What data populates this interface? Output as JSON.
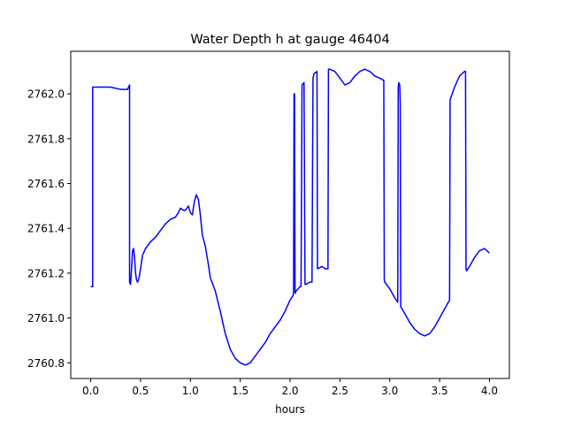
{
  "chart_data": {
    "type": "line",
    "title": "Water Depth h at gauge 46404",
    "xlabel": "hours",
    "ylabel": "",
    "xlim": [
      -0.2,
      4.2
    ],
    "ylim": [
      2760.73,
      2762.19
    ],
    "xticks": [
      0.0,
      0.5,
      1.0,
      1.5,
      2.0,
      2.5,
      3.0,
      3.5,
      4.0
    ],
    "xtick_labels": [
      "0.0",
      "0.5",
      "1.0",
      "1.5",
      "2.0",
      "2.5",
      "3.0",
      "3.5",
      "4.0"
    ],
    "yticks": [
      2760.8,
      2761.0,
      2761.2,
      2761.4,
      2761.6,
      2761.8,
      2762.0
    ],
    "ytick_labels": [
      "2760.8",
      "2761.0",
      "2761.2",
      "2761.4",
      "2761.6",
      "2761.8",
      "2762.0"
    ],
    "grid": false,
    "colors": {
      "line": "#0000ff",
      "axes": "#000000",
      "background": "#ffffff"
    },
    "series": [
      {
        "x": [
          0.0,
          0.015,
          0.02,
          0.02,
          0.1,
          0.2,
          0.3,
          0.36,
          0.37,
          0.39,
          0.39,
          0.4,
          0.41,
          0.42,
          0.43,
          0.44,
          0.45,
          0.46,
          0.47,
          0.48,
          0.49,
          0.5,
          0.52,
          0.55,
          0.6,
          0.65,
          0.7,
          0.75,
          0.8,
          0.85,
          0.88,
          0.9,
          0.93,
          0.95,
          0.98,
          1.0,
          1.02,
          1.04,
          1.06,
          1.08,
          1.1,
          1.12,
          1.15,
          1.18,
          1.2,
          1.25,
          1.3,
          1.35,
          1.4,
          1.45,
          1.5,
          1.55,
          1.6,
          1.65,
          1.7,
          1.75,
          1.8,
          1.85,
          1.9,
          1.95,
          2.0,
          2.03,
          2.035,
          2.04,
          2.045,
          2.05,
          2.06,
          2.08,
          2.1,
          2.11,
          2.12,
          2.14,
          2.15,
          2.155,
          2.16,
          2.2,
          2.22,
          2.23,
          2.235,
          2.24,
          2.27,
          2.275,
          2.28,
          2.32,
          2.35,
          2.38,
          2.385,
          2.39,
          2.4,
          2.45,
          2.5,
          2.55,
          2.6,
          2.65,
          2.7,
          2.75,
          2.8,
          2.85,
          2.9,
          2.94,
          2.945,
          2.95,
          3.0,
          3.05,
          3.08,
          3.085,
          3.09,
          3.1,
          3.105,
          3.11,
          3.15,
          3.2,
          3.25,
          3.3,
          3.35,
          3.4,
          3.45,
          3.5,
          3.55,
          3.6,
          3.605,
          3.61,
          3.65,
          3.7,
          3.75,
          3.76,
          3.765,
          3.77,
          3.8,
          3.85,
          3.9,
          3.95,
          4.0
        ],
        "y": [
          2761.14,
          2761.14,
          2761.14,
          2762.03,
          2762.03,
          2762.03,
          2762.02,
          2762.02,
          2762.02,
          2762.04,
          2761.16,
          2761.15,
          2761.22,
          2761.3,
          2761.31,
          2761.27,
          2761.2,
          2761.17,
          2761.16,
          2761.17,
          2761.19,
          2761.22,
          2761.28,
          2761.31,
          2761.34,
          2761.36,
          2761.39,
          2761.42,
          2761.44,
          2761.45,
          2761.47,
          2761.49,
          2761.48,
          2761.48,
          2761.5,
          2761.47,
          2761.46,
          2761.52,
          2761.55,
          2761.53,
          2761.46,
          2761.37,
          2761.32,
          2761.24,
          2761.18,
          2761.12,
          2761.03,
          2760.93,
          2760.86,
          2760.82,
          2760.8,
          2760.79,
          2760.8,
          2760.83,
          2760.86,
          2760.89,
          2760.93,
          2760.96,
          2760.99,
          2761.03,
          2761.08,
          2761.1,
          2761.12,
          2762.0,
          2762.0,
          2761.11,
          2761.12,
          2761.13,
          2761.14,
          2761.14,
          2762.04,
          2762.05,
          2761.15,
          2761.15,
          2761.15,
          2761.16,
          2761.16,
          2762.07,
          2762.08,
          2762.09,
          2762.1,
          2761.22,
          2761.22,
          2761.23,
          2761.22,
          2761.22,
          2762.11,
          2762.11,
          2762.11,
          2762.1,
          2762.07,
          2762.04,
          2762.05,
          2762.08,
          2762.1,
          2762.11,
          2762.1,
          2762.08,
          2762.07,
          2762.06,
          2761.17,
          2761.16,
          2761.13,
          2761.09,
          2761.07,
          2762.03,
          2762.05,
          2762.04,
          2761.96,
          2761.05,
          2761.02,
          2760.98,
          2760.95,
          2760.93,
          2760.92,
          2760.93,
          2760.96,
          2761.0,
          2761.04,
          2761.08,
          2761.97,
          2761.98,
          2762.03,
          2762.08,
          2762.1,
          2762.1,
          2761.22,
          2761.21,
          2761.23,
          2761.27,
          2761.3,
          2761.31,
          2761.29
        ]
      }
    ]
  }
}
